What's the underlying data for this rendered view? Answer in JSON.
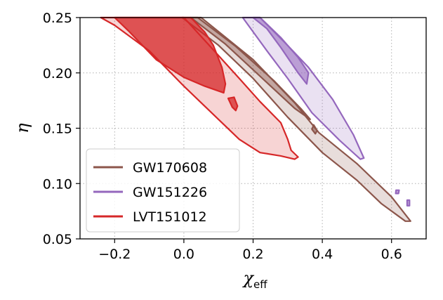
{
  "chart_data": {
    "type": "contour",
    "title": "",
    "xlabel": "χ",
    "xlabel_sub": "eff",
    "ylabel": "η",
    "xlim": [
      -0.3,
      0.7
    ],
    "ylim": [
      0.05,
      0.25
    ],
    "grid": true,
    "legend_position": "lower-left",
    "x_ticks": [
      -0.2,
      0.0,
      0.2,
      0.4,
      0.6
    ],
    "x_tick_labels": [
      "−0.2",
      "0.0",
      "0.2",
      "0.4",
      "0.6"
    ],
    "y_ticks": [
      0.05,
      0.1,
      0.15,
      0.2,
      0.25
    ],
    "y_tick_labels": [
      "0.05",
      "0.10",
      "0.15",
      "0.20",
      "0.25"
    ],
    "series": [
      {
        "name": "GW170608",
        "color": "#8c564b",
        "regions": [
          {
            "level": "90%",
            "fill_opacity": 0.2,
            "points": [
              [
                -0.005,
                0.25
              ],
              [
                0.05,
                0.25
              ],
              [
                0.2,
                0.212
              ],
              [
                0.32,
                0.173
              ],
              [
                0.39,
                0.146
              ],
              [
                0.5,
                0.118
              ],
              [
                0.6,
                0.088
              ],
              [
                0.655,
                0.066
              ],
              [
                0.64,
                0.066
              ],
              [
                0.57,
                0.082
              ],
              [
                0.5,
                0.103
              ],
              [
                0.4,
                0.128
              ],
              [
                0.3,
                0.16
              ],
              [
                0.2,
                0.195
              ],
              [
                0.1,
                0.225
              ]
            ]
          },
          {
            "level": "50%",
            "fill_opacity": 0.4,
            "points": [
              [
                0.02,
                0.25
              ],
              [
                0.04,
                0.25
              ],
              [
                0.15,
                0.224
              ],
              [
                0.26,
                0.193
              ],
              [
                0.34,
                0.167
              ],
              [
                0.365,
                0.158
              ],
              [
                0.32,
                0.168
              ],
              [
                0.22,
                0.197
              ],
              [
                0.12,
                0.226
              ]
            ]
          },
          {
            "level": "blob",
            "fill_opacity": 0.6,
            "points": [
              [
                0.375,
                0.153
              ],
              [
                0.385,
                0.148
              ],
              [
                0.38,
                0.145
              ],
              [
                0.37,
                0.149
              ]
            ]
          }
        ]
      },
      {
        "name": "GW151226",
        "color": "#9467bd",
        "regions": [
          {
            "level": "90%",
            "fill_opacity": 0.2,
            "points": [
              [
                0.17,
                0.25
              ],
              [
                0.22,
                0.25
              ],
              [
                0.29,
                0.228
              ],
              [
                0.36,
                0.205
              ],
              [
                0.43,
                0.176
              ],
              [
                0.49,
                0.144
              ],
              [
                0.52,
                0.123
              ],
              [
                0.51,
                0.122
              ],
              [
                0.45,
                0.139
              ],
              [
                0.37,
                0.164
              ],
              [
                0.3,
                0.195
              ],
              [
                0.24,
                0.22
              ]
            ]
          },
          {
            "level": "50%",
            "fill_opacity": 0.55,
            "points": [
              [
                0.2,
                0.25
              ],
              [
                0.22,
                0.25
              ],
              [
                0.28,
                0.232
              ],
              [
                0.33,
                0.214
              ],
              [
                0.36,
                0.2
              ],
              [
                0.355,
                0.19
              ],
              [
                0.33,
                0.2
              ],
              [
                0.28,
                0.223
              ],
              [
                0.24,
                0.24
              ]
            ]
          },
          {
            "level": "blob",
            "fill_opacity": 0.6,
            "points": [
              [
                0.613,
                0.094
              ],
              [
                0.622,
                0.094
              ],
              [
                0.62,
                0.091
              ],
              [
                0.612,
                0.091
              ]
            ]
          },
          {
            "level": "blob",
            "fill_opacity": 0.6,
            "points": [
              [
                0.645,
                0.085
              ],
              [
                0.652,
                0.085
              ],
              [
                0.652,
                0.08
              ],
              [
                0.645,
                0.08
              ]
            ]
          }
        ]
      },
      {
        "name": "LVT151012",
        "color": "#d62728",
        "regions": [
          {
            "level": "90%",
            "fill_opacity": 0.2,
            "points": [
              [
                -0.24,
                0.25
              ],
              [
                0.0,
                0.25
              ],
              [
                0.07,
                0.226
              ],
              [
                0.16,
                0.195
              ],
              [
                0.22,
                0.174
              ],
              [
                0.28,
                0.155
              ],
              [
                0.3,
                0.14
              ],
              [
                0.31,
                0.13
              ],
              [
                0.33,
                0.124
              ],
              [
                0.32,
                0.122
              ],
              [
                0.28,
                0.125
              ],
              [
                0.22,
                0.128
              ],
              [
                0.16,
                0.14
              ],
              [
                0.1,
                0.158
              ],
              [
                0.0,
                0.188
              ],
              [
                -0.1,
                0.22
              ],
              [
                -0.2,
                0.243
              ]
            ]
          },
          {
            "level": "50%",
            "fill_opacity": 0.75,
            "points": [
              [
                -0.2,
                0.25
              ],
              [
                0.02,
                0.25
              ],
              [
                0.06,
                0.237
              ],
              [
                0.085,
                0.225
              ],
              [
                0.11,
                0.205
              ],
              [
                0.12,
                0.19
              ],
              [
                0.115,
                0.182
              ],
              [
                0.06,
                0.188
              ],
              [
                0.0,
                0.196
              ],
              [
                -0.08,
                0.212
              ],
              [
                -0.16,
                0.238
              ]
            ]
          },
          {
            "level": "blob",
            "fill_opacity": 0.75,
            "points": [
              [
                0.128,
                0.177
              ],
              [
                0.145,
                0.178
              ],
              [
                0.155,
                0.17
              ],
              [
                0.15,
                0.166
              ],
              [
                0.14,
                0.169
              ]
            ]
          }
        ]
      }
    ]
  }
}
